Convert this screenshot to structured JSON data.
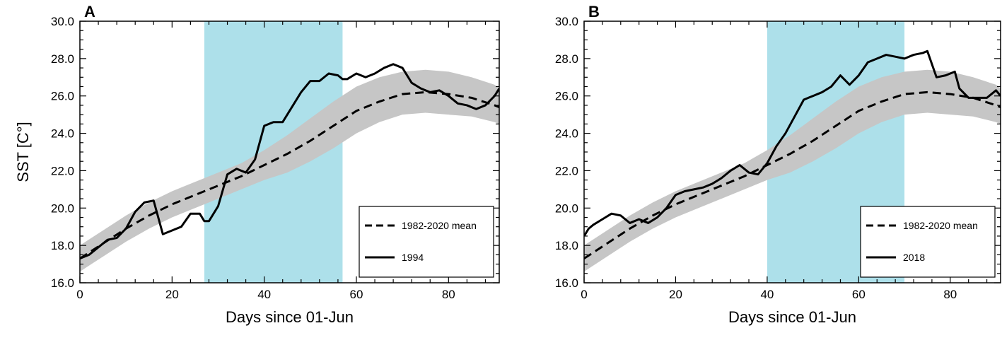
{
  "figure": {
    "title": ""
  },
  "chart_data": [
    {
      "type": "line",
      "panel_label": "A",
      "xlabel": "Days since 01-Jun",
      "ylabel": "SST [C°]",
      "xlim": [
        0,
        91
      ],
      "ylim": [
        16.0,
        30.0
      ],
      "x_ticks": [
        0,
        20,
        40,
        60,
        80
      ],
      "x_tick_labels": [
        "0",
        "20",
        "40",
        "60",
        "80"
      ],
      "y_ticks": [
        16,
        18,
        20,
        22,
        24,
        26,
        28,
        30
      ],
      "y_tick_labels": [
        "16.0",
        "18.0",
        "20.0",
        "22.0",
        "24.0",
        "26.0",
        "28.0",
        "30.0"
      ],
      "shaded_period": [
        27,
        57
      ],
      "shade_color": "#ade0ea",
      "band_color": "#c6c6c6",
      "legend_position": "bottom-right",
      "series": [
        {
          "name": "1982-2020 mean",
          "style": "dashed",
          "x": [
            0,
            5,
            10,
            15,
            20,
            25,
            30,
            35,
            40,
            45,
            50,
            55,
            60,
            65,
            70,
            75,
            80,
            85,
            90,
            91
          ],
          "values": [
            17.3,
            18.1,
            18.9,
            19.6,
            20.2,
            20.7,
            21.2,
            21.7,
            22.3,
            22.9,
            23.6,
            24.4,
            25.2,
            25.7,
            26.1,
            26.2,
            26.1,
            25.9,
            25.5,
            25.4
          ]
        },
        {
          "name": "1994",
          "style": "solid",
          "x": [
            0,
            2,
            4,
            6,
            8,
            10,
            12,
            14,
            16,
            18,
            20,
            22,
            24,
            26,
            27,
            28,
            30,
            32,
            34,
            36,
            38,
            40,
            42,
            44,
            46,
            48,
            50,
            52,
            54,
            56,
            57,
            58,
            60,
            62,
            64,
            66,
            68,
            70,
            72,
            74,
            76,
            78,
            80,
            82,
            84,
            86,
            88,
            90,
            91
          ],
          "values": [
            17.3,
            17.5,
            17.9,
            18.3,
            18.4,
            18.9,
            19.8,
            20.3,
            20.4,
            18.6,
            18.8,
            19.0,
            19.7,
            19.7,
            19.3,
            19.3,
            20.1,
            21.8,
            22.1,
            21.9,
            22.6,
            24.4,
            24.6,
            24.6,
            25.4,
            26.2,
            26.8,
            26.8,
            27.2,
            27.1,
            26.9,
            26.9,
            27.2,
            27.0,
            27.2,
            27.5,
            27.7,
            27.5,
            26.7,
            26.4,
            26.2,
            26.3,
            26.0,
            25.6,
            25.5,
            25.3,
            25.5,
            26.0,
            26.4
          ]
        }
      ],
      "band": {
        "x": [
          0,
          5,
          10,
          15,
          20,
          25,
          30,
          35,
          40,
          45,
          50,
          55,
          60,
          65,
          70,
          75,
          80,
          85,
          90,
          91
        ],
        "lower": [
          16.6,
          17.4,
          18.2,
          18.9,
          19.5,
          20.0,
          20.5,
          21.0,
          21.5,
          21.9,
          22.5,
          23.2,
          24.0,
          24.6,
          25.0,
          25.1,
          25.0,
          24.9,
          24.6,
          24.5
        ],
        "upper": [
          18.0,
          18.8,
          19.6,
          20.3,
          20.9,
          21.4,
          21.9,
          22.4,
          23.1,
          23.9,
          24.8,
          25.7,
          26.5,
          27.0,
          27.3,
          27.4,
          27.3,
          27.0,
          26.6,
          26.4
        ]
      },
      "legend": [
        {
          "label": "1982-2020 mean",
          "style": "dashed"
        },
        {
          "label": "1994",
          "style": "solid"
        }
      ]
    },
    {
      "type": "line",
      "panel_label": "B",
      "xlabel": "Days since 01-Jun",
      "ylabel": "",
      "xlim": [
        0,
        91
      ],
      "ylim": [
        16.0,
        30.0
      ],
      "x_ticks": [
        0,
        20,
        40,
        60,
        80
      ],
      "x_tick_labels": [
        "0",
        "20",
        "40",
        "60",
        "80"
      ],
      "y_ticks": [
        16,
        18,
        20,
        22,
        24,
        26,
        28,
        30
      ],
      "y_tick_labels": [
        "16.0",
        "18.0",
        "20.0",
        "22.0",
        "24.0",
        "26.0",
        "28.0",
        "30.0"
      ],
      "shaded_period": [
        40,
        70
      ],
      "shade_color": "#ade0ea",
      "band_color": "#c6c6c6",
      "legend_position": "bottom-right",
      "series": [
        {
          "name": "1982-2020 mean",
          "style": "dashed",
          "x": [
            0,
            5,
            10,
            15,
            20,
            25,
            30,
            35,
            40,
            45,
            50,
            55,
            60,
            65,
            70,
            75,
            80,
            85,
            90,
            91
          ],
          "values": [
            17.3,
            18.1,
            18.9,
            19.6,
            20.2,
            20.7,
            21.2,
            21.7,
            22.3,
            22.9,
            23.6,
            24.4,
            25.2,
            25.7,
            26.1,
            26.2,
            26.1,
            25.9,
            25.5,
            25.4
          ]
        },
        {
          "name": "2018",
          "style": "solid",
          "x": [
            0,
            1,
            2,
            4,
            6,
            8,
            10,
            12,
            14,
            16,
            18,
            20,
            22,
            24,
            26,
            28,
            30,
            32,
            34,
            36,
            38,
            40,
            42,
            44,
            46,
            48,
            50,
            52,
            54,
            56,
            58,
            60,
            62,
            64,
            66,
            68,
            70,
            72,
            74,
            75,
            77,
            79,
            81,
            82,
            84,
            86,
            88,
            90,
            91
          ],
          "values": [
            18.5,
            18.9,
            19.1,
            19.4,
            19.7,
            19.6,
            19.2,
            19.4,
            19.2,
            19.5,
            20.0,
            20.7,
            20.9,
            21.0,
            21.1,
            21.3,
            21.6,
            22.0,
            22.3,
            21.9,
            21.8,
            22.4,
            23.3,
            24.0,
            24.9,
            25.8,
            26.0,
            26.2,
            26.5,
            27.1,
            26.6,
            27.1,
            27.8,
            28.0,
            28.2,
            28.1,
            28.0,
            28.2,
            28.3,
            28.4,
            27.0,
            27.1,
            27.3,
            26.4,
            25.9,
            25.9,
            25.9,
            26.3,
            26.0
          ]
        }
      ],
      "band": {
        "x": [
          0,
          5,
          10,
          15,
          20,
          25,
          30,
          35,
          40,
          45,
          50,
          55,
          60,
          65,
          70,
          75,
          80,
          85,
          90,
          91
        ],
        "lower": [
          16.6,
          17.4,
          18.2,
          18.9,
          19.5,
          20.0,
          20.5,
          21.0,
          21.5,
          21.9,
          22.5,
          23.2,
          24.0,
          24.6,
          25.0,
          25.1,
          25.0,
          24.9,
          24.6,
          24.5
        ],
        "upper": [
          18.0,
          18.8,
          19.6,
          20.3,
          20.9,
          21.4,
          21.9,
          22.4,
          23.1,
          23.9,
          24.8,
          25.7,
          26.5,
          27.0,
          27.3,
          27.4,
          27.3,
          27.0,
          26.6,
          26.4
        ]
      },
      "legend": [
        {
          "label": "1982-2020 mean",
          "style": "dashed"
        },
        {
          "label": "2018",
          "style": "solid"
        }
      ]
    }
  ]
}
